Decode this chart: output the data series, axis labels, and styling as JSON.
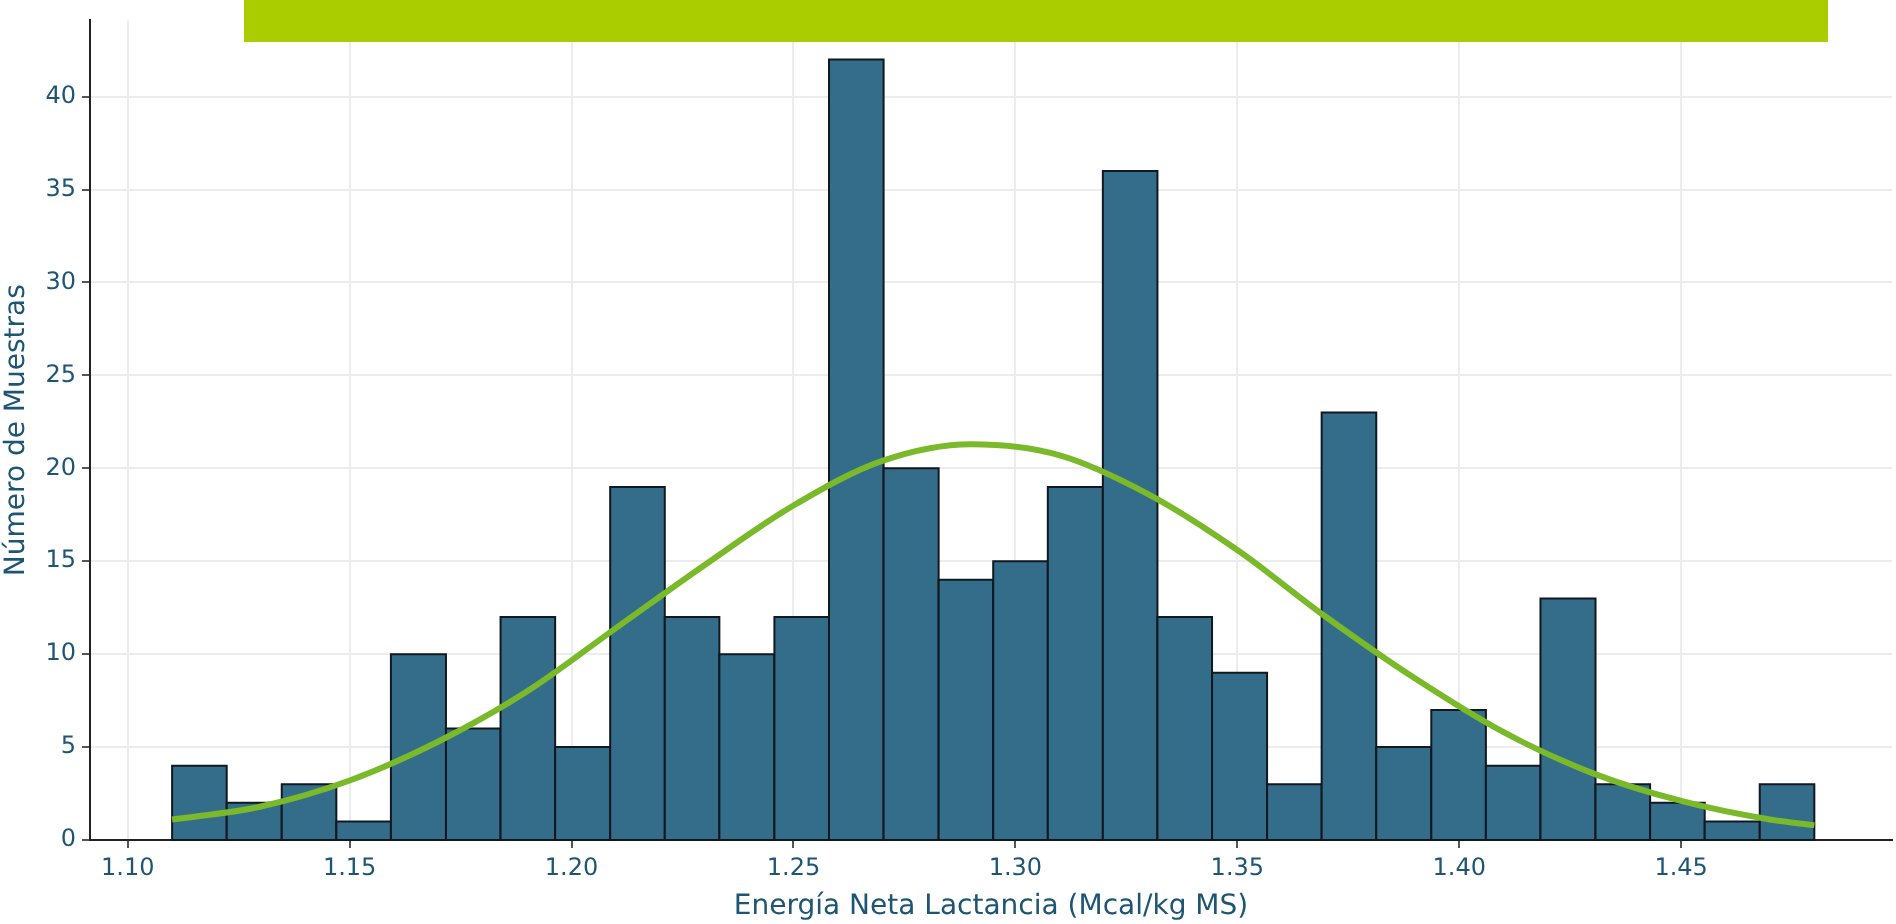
{
  "chart_data": {
    "type": "histogram",
    "xlabel": "Energía Neta Lactancia (Mcal/kg MS)",
    "ylabel": "Número de Muestras",
    "bins": [
      1.11,
      1.1223,
      1.1347,
      1.147,
      1.1593,
      1.1717,
      1.184,
      1.1963,
      1.2087,
      1.221,
      1.2333,
      1.2457,
      1.258,
      1.2703,
      1.2827,
      1.295,
      1.3073,
      1.3197,
      1.332,
      1.3443,
      1.3567,
      1.369,
      1.3813,
      1.3937,
      1.406,
      1.4183,
      1.4307,
      1.443,
      1.4553,
      1.4677,
      1.48
    ],
    "values": [
      4,
      2,
      3,
      1,
      10,
      6,
      12,
      5,
      19,
      12,
      10,
      12,
      42,
      20,
      14,
      15,
      19,
      36,
      12,
      9,
      3,
      23,
      5,
      7,
      4,
      13,
      3,
      2,
      1,
      3
    ],
    "color": "#346d8a",
    "series": [
      {
        "type": "line",
        "color": "#7ab929",
        "x": [
          1.11,
          1.13,
          1.15,
          1.17,
          1.19,
          1.21,
          1.23,
          1.25,
          1.27,
          1.29,
          1.31,
          1.33,
          1.35,
          1.37,
          1.39,
          1.41,
          1.43,
          1.45,
          1.47,
          1.48
        ],
        "values": [
          1.1,
          1.8,
          3.2,
          5.3,
          8.0,
          11.4,
          14.8,
          18.0,
          20.4,
          21.3,
          20.7,
          18.6,
          15.6,
          12.0,
          8.7,
          5.8,
          3.6,
          2.1,
          1.1,
          0.8
        ]
      }
    ],
    "xlim": [
      1.0915,
      1.4975
    ],
    "xticks": [
      {
        "value": 1.1,
        "label": "1.10"
      },
      {
        "value": 1.15,
        "label": "1.15"
      },
      {
        "value": 1.2,
        "label": "1.20"
      },
      {
        "value": 1.25,
        "label": "1.25"
      },
      {
        "value": 1.3,
        "label": "1.30"
      },
      {
        "value": 1.35,
        "label": "1.35"
      },
      {
        "value": 1.4,
        "label": "1.40"
      },
      {
        "value": 1.45,
        "label": "1.45"
      }
    ],
    "ylim": [
      0,
      44.1
    ],
    "yticks": [
      0,
      5,
      10,
      15,
      20,
      25,
      30,
      35,
      40
    ],
    "grid": true,
    "legend": false
  }
}
